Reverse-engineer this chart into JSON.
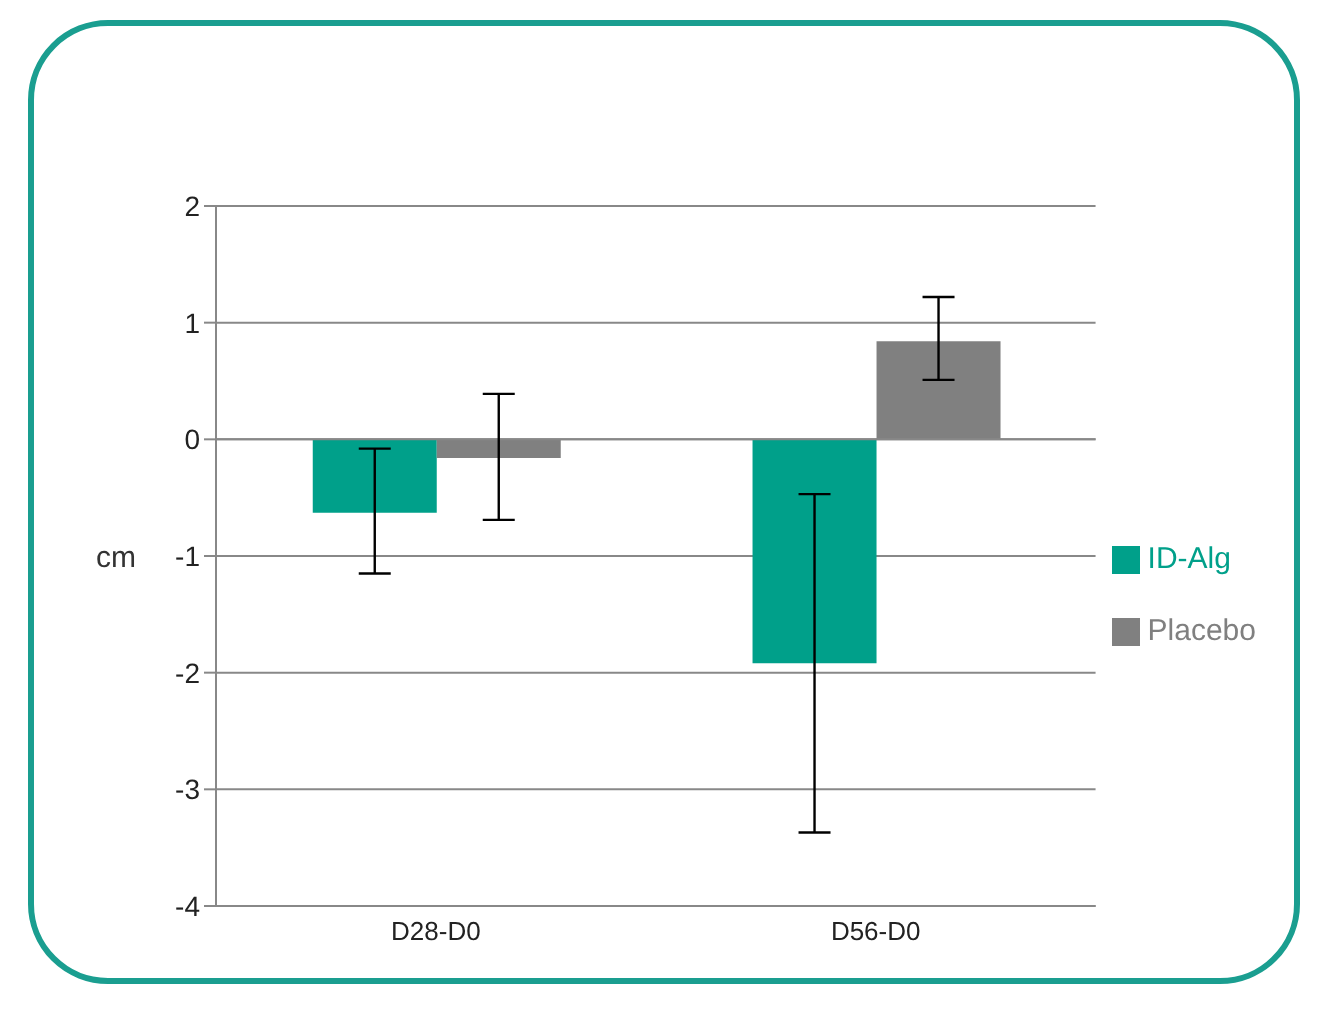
{
  "chart_data": {
    "type": "bar",
    "ylabel": "cm",
    "categories": [
      "D28-D0",
      "D56-D0"
    ],
    "series": [
      {
        "name": "ID-Alg",
        "color": "#00a08a",
        "values": [
          -0.63,
          -1.92
        ],
        "errors": [
          [
            -1.15,
            -0.08
          ],
          [
            -3.37,
            -0.47
          ]
        ]
      },
      {
        "name": "Placebo",
        "color": "#808080",
        "values": [
          -0.16,
          0.84
        ],
        "errors": [
          [
            -0.69,
            0.39
          ],
          [
            0.51,
            1.22
          ]
        ]
      }
    ],
    "ylim": [
      -4,
      2
    ],
    "yticks": [
      -4,
      -3,
      -2,
      -1,
      0,
      1,
      2
    ],
    "grid": "y",
    "legend": "right"
  }
}
